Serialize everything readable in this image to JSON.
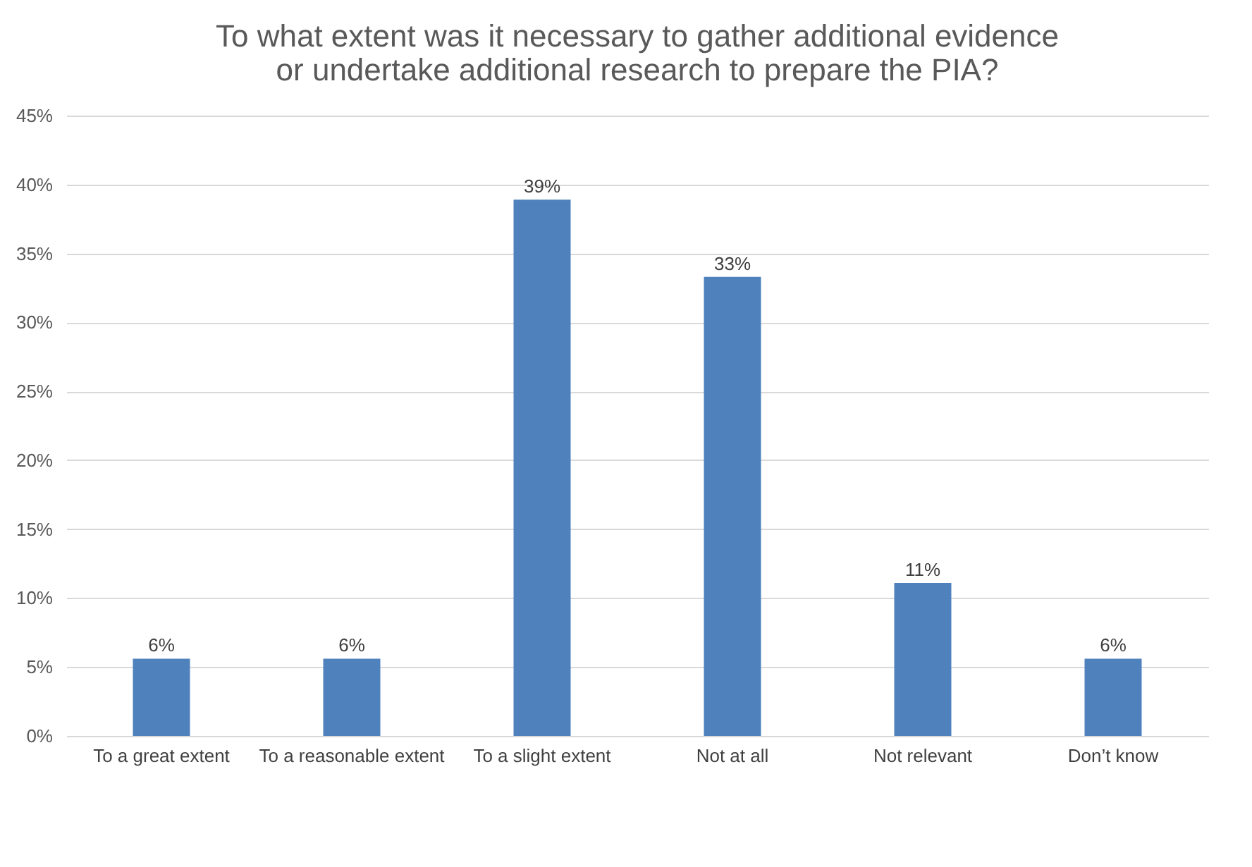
{
  "chart_data": {
    "type": "bar",
    "title": [
      "To what extent was it necessary to gather additional evidence",
      "or undertake additional research to prepare the PIA?"
    ],
    "categories": [
      "To a great extent",
      "To a reasonable extent",
      "To a slight extent",
      "Not at all",
      "Not relevant",
      "Don’t know"
    ],
    "values": [
      5.6,
      5.6,
      38.9,
      33.3,
      11.1,
      5.6
    ],
    "value_labels": [
      "6%",
      "6%",
      "39%",
      "33%",
      "11%",
      "6%"
    ],
    "color": "#4f81bd",
    "ylim": [
      0,
      45
    ],
    "yticks": [
      {
        "value": 0,
        "label": "0%"
      },
      {
        "value": 5,
        "label": "5%"
      },
      {
        "value": 10,
        "label": "10%"
      },
      {
        "value": 15,
        "label": "15%"
      },
      {
        "value": 20,
        "label": "20%"
      },
      {
        "value": 25,
        "label": "25%"
      },
      {
        "value": 30,
        "label": "30%"
      },
      {
        "value": 35,
        "label": "35%"
      },
      {
        "value": 40,
        "label": "40%"
      },
      {
        "value": 45,
        "label": "45%"
      }
    ],
    "grid": "y"
  }
}
